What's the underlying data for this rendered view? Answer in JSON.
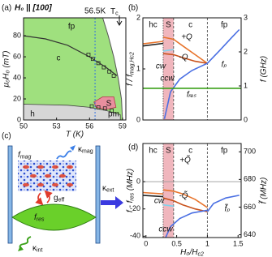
{
  "chart_data": [
    {
      "type": "phase",
      "panel_label": "(a)",
      "title": "H₀ || [100]",
      "x_label": "T (K)",
      "y_label": "μ₀H₀ (mT)",
      "xlim": [
        50,
        59.3
      ],
      "xticks": [
        50,
        53,
        56,
        59
      ],
      "ylim": [
        0,
        97
      ],
      "yticks": [
        0,
        20,
        40,
        60,
        80
      ],
      "outer_boundary": {
        "color": "#9fe07e",
        "x": [
          57.2,
          57.7,
          58.2,
          58.6,
          58.9,
          59.0
        ],
        "values": [
          97,
          80,
          60,
          40,
          20,
          0
        ]
      },
      "fp_c_boundary": {
        "color": "#333333",
        "x": [
          50,
          52,
          54,
          56,
          57.5,
          58.5
        ],
        "values": [
          80,
          77,
          71,
          60,
          50,
          42
        ]
      },
      "h_boundary": {
        "color": "#d6d6d6",
        "x": [
          50,
          54,
          56,
          57.5,
          58.8
        ],
        "values": [
          15,
          14,
          12,
          9,
          5
        ]
      },
      "skyrmion_pocket": {
        "color": "#e88f9e",
        "x": [
          56.4,
          57.2,
          58.2,
          58.4,
          57.5,
          56.6
        ],
        "values": [
          17,
          22,
          22,
          12,
          10,
          12
        ]
      },
      "points": {
        "x": [
          55.9,
          56.3,
          56.8,
          57.3,
          57.8,
          58.2,
          56.2,
          56.8,
          57.4,
          58.0
        ],
        "values": [
          62,
          58,
          54,
          50,
          46,
          42,
          13,
          12,
          11,
          9
        ]
      },
      "region_labels": [
        "fp",
        "c",
        "S",
        "h",
        "pm"
      ],
      "marker_line": {
        "value": 56.5,
        "label": "56.5K",
        "color": "#2f6fe0"
      },
      "tc_label": {
        "text": "T",
        "sub": "c"
      }
    },
    {
      "type": "line",
      "panel_label": "(b)",
      "y_label": {
        "text": "f / f",
        "sub": "mag,Hc2"
      },
      "y2_label": "f (GHz)",
      "xlim": [
        -0.05,
        1.55
      ],
      "ylim": [
        0,
        2
      ],
      "yticks": [
        0,
        1,
        2
      ],
      "y2lim": [
        0,
        3
      ],
      "y2ticks": [
        0,
        1,
        2,
        3
      ],
      "phase_boundaries": [
        0.28,
        0.45,
        1.0
      ],
      "region_labels": [
        "hc",
        "S",
        "c",
        "fp"
      ],
      "shade_color": "#f0b6bd",
      "series": [
        {
          "color": "#222222",
          "x": [
            -0.05,
            0.28
          ],
          "values": [
            1.45,
            1.5
          ]
        },
        {
          "color": "#e8742c",
          "x": [
            -0.05,
            0.28
          ],
          "values": [
            1.49,
            1.54
          ]
        },
        {
          "label": "+Q",
          "color": "#e8742c",
          "x": [
            0.28,
            0.45,
            0.6,
            0.8,
            1.0
          ],
          "values": [
            1.62,
            1.58,
            1.45,
            1.28,
            1.11
          ]
        },
        {
          "label": "-Q",
          "color": "#c9521c",
          "x": [
            0.28,
            0.45,
            0.6,
            0.8,
            1.0
          ],
          "values": [
            1.3,
            1.28,
            1.22,
            1.15,
            1.11
          ]
        },
        {
          "label": "cw",
          "color": "#7fd3ee",
          "x": [
            0.28,
            0.45
          ],
          "values": [
            1.35,
            1.38
          ]
        },
        {
          "label": "ccw",
          "color": "#4a6fe3",
          "x": [
            0.3,
            0.4,
            0.55,
            0.75,
            1.0
          ],
          "values": [
            0.02,
            0.55,
            0.8,
            0.97,
            1.11
          ]
        },
        {
          "label": "fₚ",
          "color": "#4a6fe3",
          "x": [
            1.0,
            1.2,
            1.4,
            1.52
          ],
          "values": [
            1.11,
            1.36,
            1.62,
            1.77
          ]
        },
        {
          "label": "fᵣₑₛ",
          "color": "#3aa018",
          "x": [
            -0.05,
            1.55
          ],
          "values": [
            0.62,
            0.62
          ]
        }
      ]
    },
    {
      "type": "line",
      "panel_label": "(d)",
      "x_label": {
        "text": "H₀/H",
        "sub": "c2"
      },
      "y_label": {
        "text": "f - f",
        "sub": "res",
        "tail": " (MHz)"
      },
      "y2_label": "f̃ (MHz)",
      "xlim": [
        -0.05,
        1.55
      ],
      "xticks": [
        0,
        0.5,
        1,
        1.5
      ],
      "ylim": [
        -41,
        28
      ],
      "yticks": [
        -40,
        -20,
        0
      ],
      "y2lim": [
        638,
        706
      ],
      "y2ticks": [
        640,
        660,
        680,
        700
      ],
      "reference_line": 0,
      "phase_boundaries": [
        0.28,
        0.45,
        1.0
      ],
      "region_labels": [
        "hc",
        "S",
        "c",
        "fp"
      ],
      "shade_color": "#f0b6bd",
      "series": [
        {
          "color": "#222222",
          "x": [
            -0.05,
            0.28
          ],
          "values": [
            -10,
            -11
          ]
        },
        {
          "color": "#e8742c",
          "x": [
            -0.05,
            0.28
          ],
          "values": [
            -8,
            -9
          ]
        },
        {
          "label": "+Q̃",
          "color": "#e8742c",
          "x": [
            0.28,
            0.45,
            0.6,
            0.8,
            1.0
          ],
          "values": [
            -6,
            -7,
            -9,
            -13,
            -19
          ]
        },
        {
          "label": "-Q̃",
          "color": "#c9521c",
          "x": [
            0.28,
            0.45,
            0.6,
            0.8,
            1.0
          ],
          "values": [
            -12,
            -14,
            -17,
            -20,
            -22
          ]
        },
        {
          "label": "cw",
          "color": "#7fd3ee",
          "x": [
            0.28,
            0.45
          ],
          "values": [
            -17,
            -18
          ]
        },
        {
          "label": "ccw",
          "color": "#4a6fe3",
          "x": [
            0.32,
            0.4,
            0.55,
            0.75,
            1.0
          ],
          "values": [
            -41,
            -33,
            -27,
            -23,
            -21
          ]
        },
        {
          "label": "f̃ₚ",
          "color": "#4a6fe3",
          "x": [
            1.0,
            1.1,
            1.3,
            1.52
          ],
          "values": [
            -22,
            -16,
            -12,
            -10
          ]
        }
      ]
    }
  ],
  "diagram": {
    "panel_label": "(c)",
    "f_mag": {
      "text": "f",
      "sub": "mag"
    },
    "kappa_mag": {
      "text": "κ",
      "sub": "mag"
    },
    "g_eff": {
      "text": "g",
      "sub": "eff"
    },
    "f_res": {
      "text": "f",
      "sub": "res"
    },
    "kappa_ext": {
      "text": "κ",
      "sub": "ext"
    },
    "kappa_int": {
      "text": "κ",
      "sub": "int"
    }
  }
}
